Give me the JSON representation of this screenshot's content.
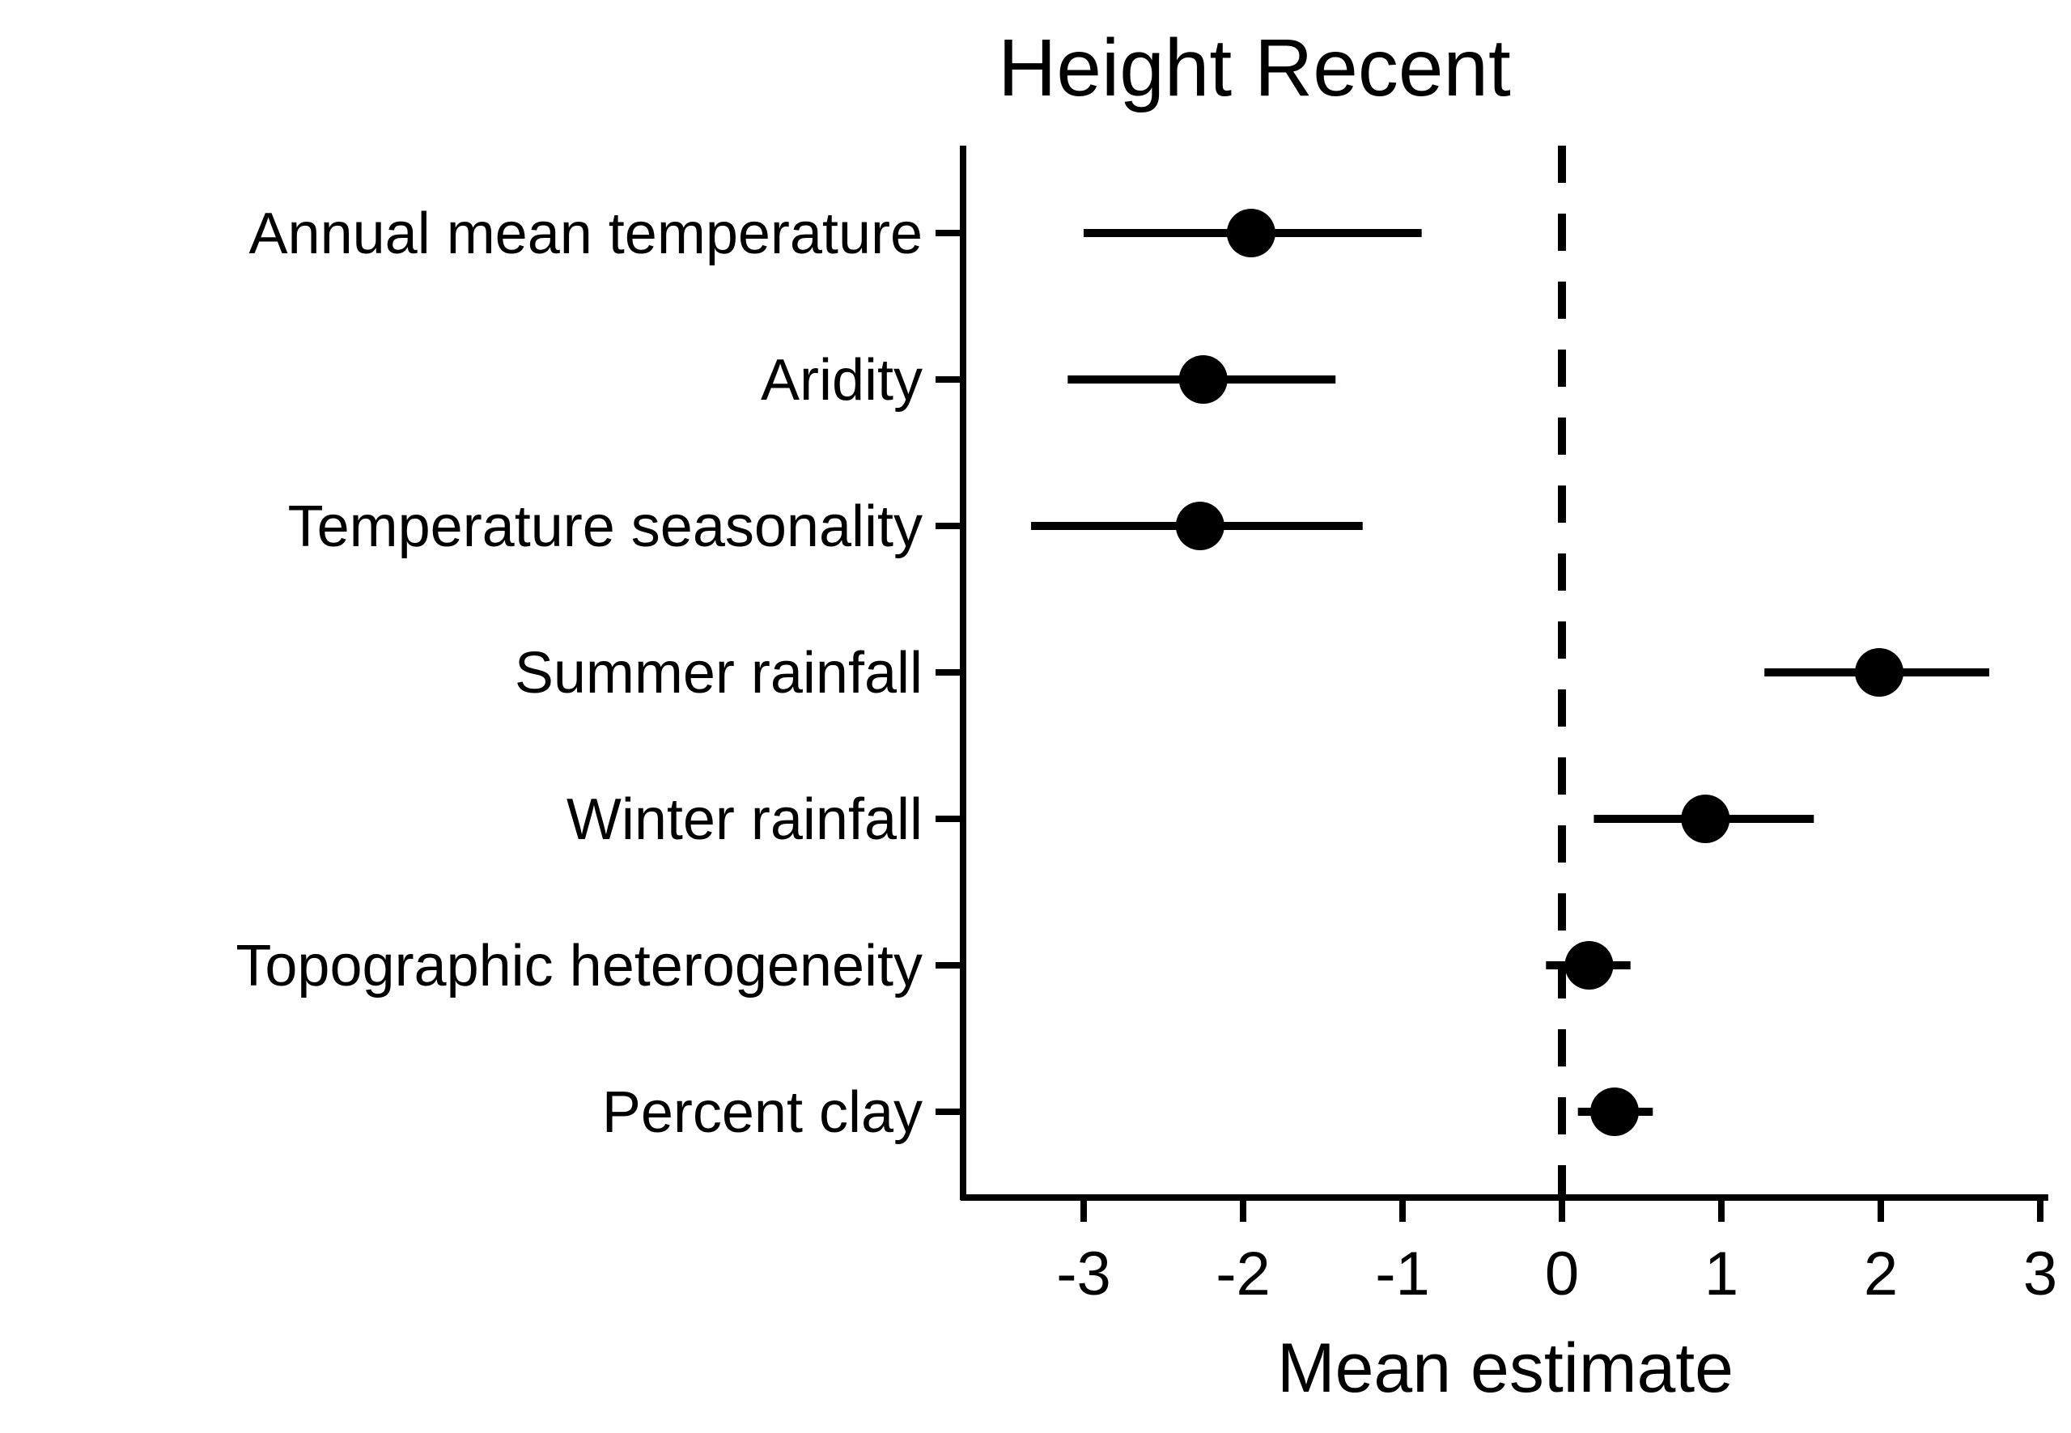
{
  "chart_data": {
    "type": "forest",
    "title": "Height Recent",
    "xlabel": "Mean estimate",
    "ylabel": "",
    "xlim": [
      -3.7,
      3.05
    ],
    "xticks": [
      -3,
      -2,
      -1,
      0,
      1,
      2,
      3
    ],
    "xtick_labels": [
      "-3",
      "-2",
      "-1",
      "0",
      "1",
      "2",
      "3"
    ],
    "reference_line": {
      "x": 0,
      "style": "dashed"
    },
    "grid": false,
    "legend": "none",
    "categories": [
      "Annual mean temperature",
      "Aridity",
      "Temperature seasonality",
      "Summer rainfall",
      "Winter rainfall",
      "Topographic heterogeneity",
      "Percent clay"
    ],
    "estimates": [
      -1.95,
      -2.25,
      -2.27,
      1.99,
      0.9,
      0.17,
      0.33
    ],
    "lower": [
      -3.0,
      -3.1,
      -3.33,
      1.27,
      0.2,
      -0.1,
      0.1
    ],
    "upper": [
      -0.88,
      -1.42,
      -1.25,
      2.68,
      1.58,
      0.43,
      0.57
    ],
    "color": "#000000"
  }
}
